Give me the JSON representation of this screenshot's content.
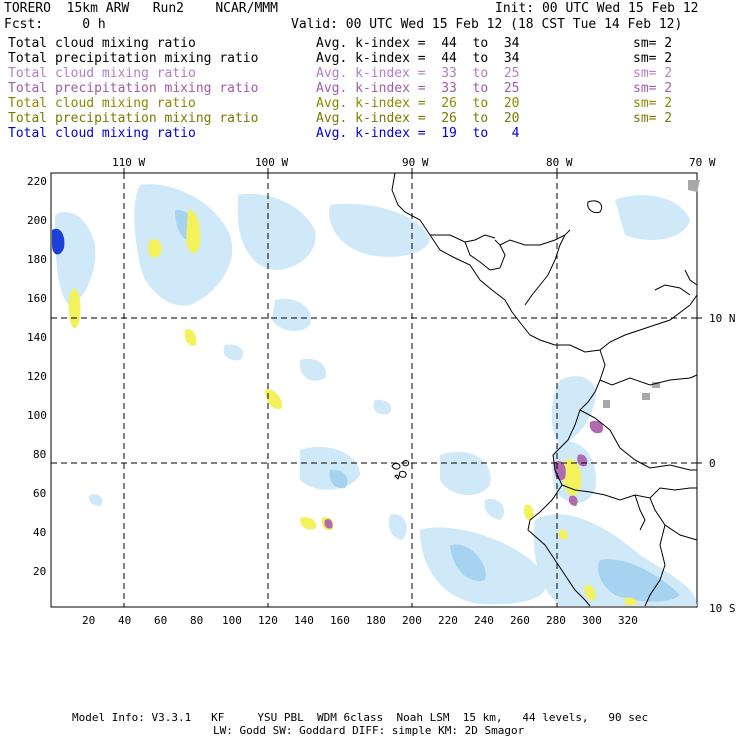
{
  "header": {
    "model": "TORERO  15km ARW   Run2    NCAR/MMM",
    "init": "Init: 00 UTC Wed 15 Feb 12",
    "fcst": "Fcst:     0 h",
    "valid": "Valid: 00 UTC Wed 15 Feb 12 (18 CST Tue 14 Feb 12)"
  },
  "legend": [
    {
      "field": "Total cloud mixing ratio",
      "kindex": "Avg. k-index =  44  to  34",
      "sm": "sm= 2",
      "color": "#000000"
    },
    {
      "field": "Total precipitation mixing ratio",
      "kindex": "Avg. k-index =  44  to  34",
      "sm": "sm= 2",
      "color": "#000000"
    },
    {
      "field": "Total cloud mixing ratio",
      "kindex": "Avg. k-index =  33  to  25",
      "sm": "sm= 2",
      "color": "#b57ccc"
    },
    {
      "field": "Total precipitation mixing ratio",
      "kindex": "Avg. k-index =  33  to  25",
      "sm": "sm= 2",
      "color": "#a35aa8"
    },
    {
      "field": "Total cloud mixing ratio",
      "kindex": "Avg. k-index =  26  to  20",
      "sm": "sm= 2",
      "color": "#8a8a00"
    },
    {
      "field": "Total precipitation mixing ratio",
      "kindex": "Avg. k-index =  26  to  20",
      "sm": "sm= 2",
      "color": "#7a7a00"
    },
    {
      "field": "Total cloud mixing ratio",
      "kindex": "Avg. k-index =  19  to   4",
      "sm": "",
      "color": "#0000dd"
    }
  ],
  "axes": {
    "top_lon": [
      "110 W",
      "100 W",
      "90 W",
      "80 W",
      "70 W"
    ],
    "right_lat": [
      "10 N",
      "0",
      "10 S"
    ],
    "left_ticks": [
      "220",
      "200",
      "180",
      "160",
      "140",
      "120",
      "100",
      "80",
      "60",
      "40",
      "20"
    ],
    "bottom_ticks": [
      "20",
      "40",
      "60",
      "80",
      "100",
      "120",
      "140",
      "160",
      "180",
      "200",
      "220",
      "240",
      "260",
      "280",
      "300",
      "320"
    ]
  },
  "colors": {
    "light_cloud": "#cfe9f8",
    "mid_cloud": "#a6d3f0",
    "yellow": "#f3f25c",
    "purple": "#b06ab0",
    "dark_blue": "#1c3fd8",
    "grey": "#a8a8a8"
  },
  "footer": {
    "line1": "Model Info: V3.3.1   KF     YSU PBL  WDM 6class  Noah LSM  15 km,   44 levels,   90 sec",
    "line2": "LW: Godd SW: Goddard DIFF: simple KM: 2D Smagor"
  }
}
